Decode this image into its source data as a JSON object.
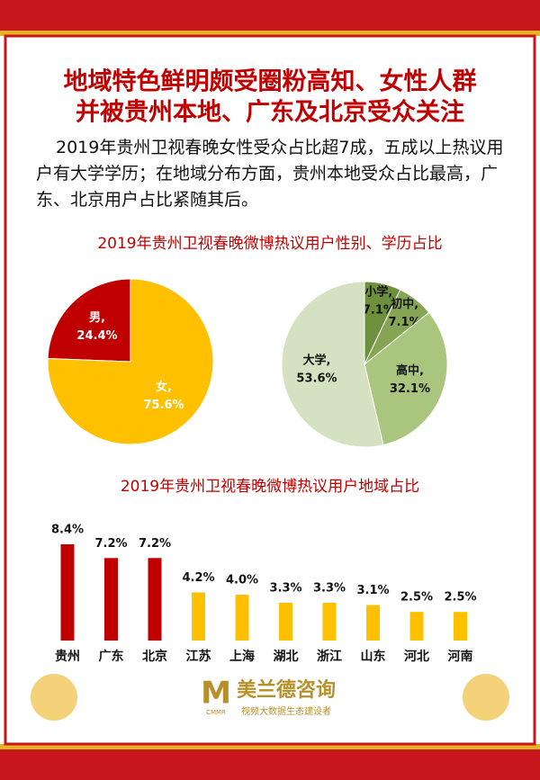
{
  "title": [
    "地域特色鲜明颇受圈粉高知、女性人群",
    "并被贵州本地、广东及北京受众关注"
  ],
  "intro": "2019年贵州卫视春晚女性受众占比超7成，五成以上热议用户有大学学历；在地域分布方面，贵州本地受众占比最高，广东、北京用户占比紧随其后。",
  "chart_data": [
    {
      "type": "pie",
      "title": "2019年贵州卫视春晚微博热议用户性别、学历占比",
      "categories": [
        "男,",
        "女,"
      ],
      "values": [
        24.4,
        75.6
      ],
      "value_labels": [
        "24.4%",
        "75.6%"
      ],
      "colors": [
        "#c00000",
        "#ffc000"
      ]
    },
    {
      "type": "pie",
      "categories": [
        "小学,",
        "初中,",
        "高中,",
        "大学,"
      ],
      "values": [
        7.1,
        7.1,
        32.1,
        53.6
      ],
      "value_labels": [
        "7.1%",
        "7.1%",
        "32.1%",
        "53.6%"
      ],
      "colors": [
        "#6e8f3c",
        "#86a552",
        "#a9c57e",
        "#d5e2c2"
      ]
    },
    {
      "type": "bar",
      "title": "2019年贵州卫视春晚微博热议用户地域占比",
      "categories": [
        "贵州",
        "广东",
        "北京",
        "江苏",
        "上海",
        "湖北",
        "浙江",
        "山东",
        "河北",
        "河南"
      ],
      "values": [
        8.4,
        7.2,
        7.2,
        4.2,
        4.0,
        3.3,
        3.3,
        3.1,
        2.5,
        2.5
      ],
      "value_labels": [
        "8.4%",
        "7.2%",
        "7.2%",
        "4.2%",
        "4.0%",
        "3.3%",
        "3.3%",
        "3.1%",
        "2.5%",
        "2.5%"
      ],
      "colors": [
        "#c00000",
        "#c00000",
        "#c00000",
        "#ffc000",
        "#ffc000",
        "#ffc000",
        "#ffc000",
        "#ffc000",
        "#ffc000",
        "#ffc000"
      ]
    }
  ],
  "logo": {
    "mark": "M",
    "sub": "CMMR",
    "name": "美兰德咨询",
    "tagline": "视频大数据生态建设者"
  }
}
